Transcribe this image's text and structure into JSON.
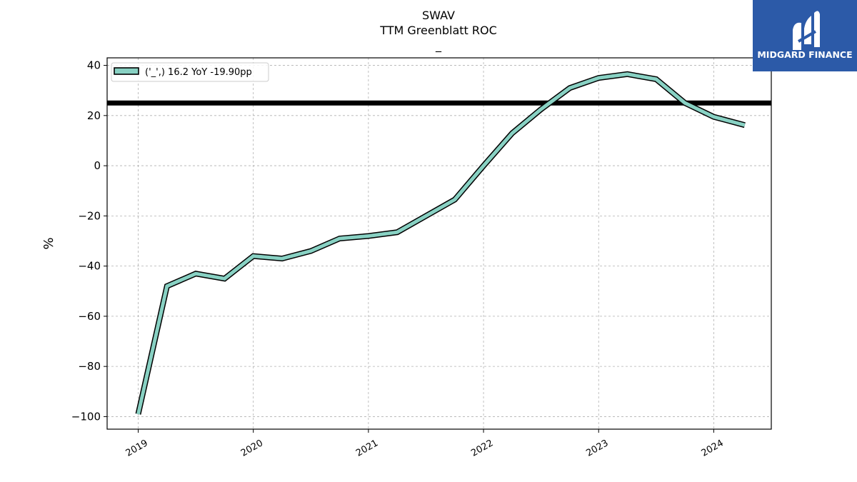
{
  "title": {
    "line1": "SWAV",
    "line2": "TTM Greenblatt ROC",
    "line3": "_"
  },
  "logo": {
    "text": "MIDGARD FINANCE",
    "bg_color": "#2c5aa8",
    "icon": "midgard-logo-icon"
  },
  "chart_data": {
    "type": "line",
    "title": "SWAV TTM Greenblatt ROC",
    "subtitle": "_",
    "xlabel": "",
    "ylabel": "%",
    "ylim": [
      -105,
      43
    ],
    "xlim": [
      2018.73,
      2024.5
    ],
    "grid": true,
    "legend_placement": "top-left",
    "x_ticks": [
      2019,
      2020,
      2021,
      2022,
      2023,
      2024
    ],
    "x_tick_labels": [
      "2019",
      "2020",
      "2021",
      "2022",
      "2023",
      "2024"
    ],
    "y_ticks": [
      40,
      20,
      0,
      -20,
      -40,
      -60,
      -80,
      -100
    ],
    "y_tick_labels": [
      "40",
      "20",
      "0",
      "−20",
      "−40",
      "−60",
      "−80",
      "−100"
    ],
    "series": [
      {
        "name": "('_',) 16.2 YoY -19.90pp",
        "color": "#88d1c3",
        "edge_color": "#000000",
        "x": [
          2019.0,
          2019.25,
          2019.5,
          2019.75,
          2020.0,
          2020.25,
          2020.5,
          2020.75,
          2021.0,
          2021.25,
          2021.75,
          2022.0,
          2022.25,
          2022.5,
          2022.75,
          2023.0,
          2023.25,
          2023.5,
          2023.75,
          2024.0,
          2024.27
        ],
        "values": [
          -99,
          -48,
          -43,
          -45,
          -36,
          -37,
          -34,
          -29,
          -28,
          -26.5,
          -13.5,
          0,
          13,
          22.5,
          31,
          35,
          36.5,
          34.5,
          25,
          19.5,
          16.2
        ]
      }
    ],
    "reference_lines": [
      {
        "orientation": "horizontal",
        "y": 25,
        "color": "#000000"
      }
    ]
  }
}
